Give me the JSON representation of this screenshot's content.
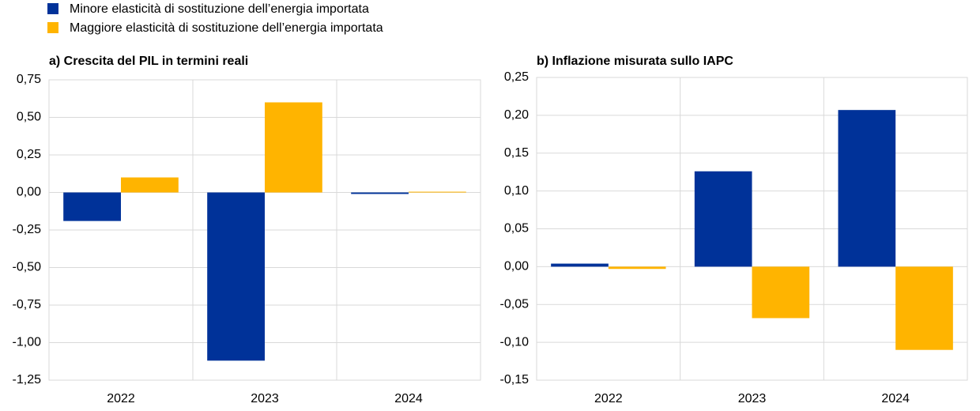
{
  "chart_data": [
    {
      "type": "bar",
      "title": "a) Crescita del PIL in termini reali",
      "categories": [
        "2022",
        "2023",
        "2024"
      ],
      "series": [
        {
          "name": "Minore elasticità di sostituzione dell’energia importata",
          "color": "#003299",
          "values": [
            -0.19,
            -1.12,
            -0.01
          ]
        },
        {
          "name": "Maggiore elasticità di sostituzione dell’energia importata",
          "color": "#ffb400",
          "values": [
            0.1,
            0.6,
            0.005
          ]
        }
      ],
      "ylim": [
        -1.25,
        0.75
      ],
      "yticks": [
        {
          "value": 0.75,
          "label": "0,75"
        },
        {
          "value": 0.5,
          "label": "0,50"
        },
        {
          "value": 0.25,
          "label": "0,25"
        },
        {
          "value": 0,
          "label": "0,00"
        },
        {
          "value": -0.25,
          "label": "-0,25"
        },
        {
          "value": -0.5,
          "label": "-0,50"
        },
        {
          "value": -0.75,
          "label": "-0,75"
        },
        {
          "value": -1,
          "label": "-1,00"
        },
        {
          "value": -1.25,
          "label": "-1,25"
        }
      ],
      "grid": true
    },
    {
      "type": "bar",
      "title": "b) Inflazione misurata sullo IAPC",
      "categories": [
        "2022",
        "2023",
        "2024"
      ],
      "series": [
        {
          "color": "#003299",
          "values": [
            0.004,
            0.126,
            0.207
          ]
        },
        {
          "color": "#ffb400",
          "values": [
            -0.003,
            -0.068,
            -0.11
          ]
        }
      ],
      "ylim": [
        -0.15,
        0.25
      ],
      "yticks": [
        {
          "value": 0.25,
          "label": "0,25"
        },
        {
          "value": 0.2,
          "label": "0,20"
        },
        {
          "value": 0.15,
          "label": "0,15"
        },
        {
          "value": 0.1,
          "label": "0,10"
        },
        {
          "value": 0.05,
          "label": "0,05"
        },
        {
          "value": 0,
          "label": "0,00"
        },
        {
          "value": -0.05,
          "label": "-0,05"
        },
        {
          "value": -0.1,
          "label": "-0,10"
        },
        {
          "value": -0.15,
          "label": "-0,15"
        }
      ],
      "grid": true
    }
  ]
}
